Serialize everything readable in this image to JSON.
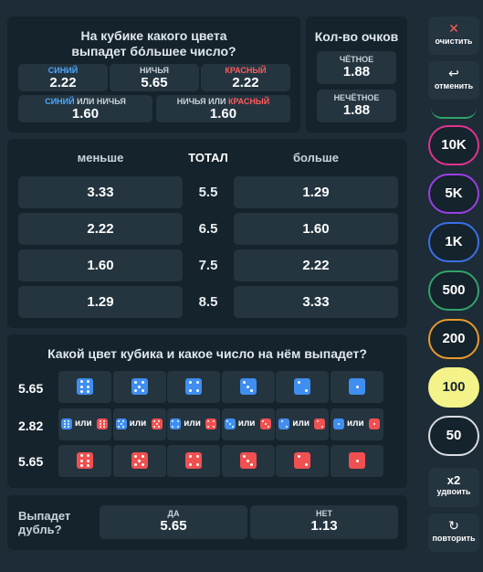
{
  "color_question": {
    "title": "На кубике какого цвета выпадет бо́льшее число?",
    "blue": {
      "label": "синий",
      "odds": "2.22"
    },
    "draw": {
      "label": "ничья",
      "odds": "5.65"
    },
    "red": {
      "label": "красный",
      "odds": "2.22"
    },
    "blue_or_draw": {
      "label_a": "синий",
      "label_or": "или",
      "label_b": "ничья",
      "odds": "1.60"
    },
    "draw_or_red": {
      "label_a": "ничья",
      "label_or": "или",
      "label_b": "красный",
      "odds": "1.60"
    }
  },
  "points": {
    "title": "Кол-во очков",
    "even": {
      "label": "чётное",
      "odds": "1.88"
    },
    "odd": {
      "label": "нечётное",
      "odds": "1.88"
    }
  },
  "total": {
    "header_less": "меньше",
    "header_total": "ТОТАЛ",
    "header_more": "больше",
    "rows": [
      {
        "less": "3.33",
        "total": "5.5",
        "more": "1.29"
      },
      {
        "less": "2.22",
        "total": "6.5",
        "more": "1.60"
      },
      {
        "less": "1.60",
        "total": "7.5",
        "more": "2.22"
      },
      {
        "less": "1.29",
        "total": "8.5",
        "more": "3.33"
      }
    ]
  },
  "dice_question": {
    "title": "Какой цвет кубика и какое число на нём выпадет?",
    "blue_odds": "5.65",
    "mixed_odds": "2.82",
    "red_odds": "5.65",
    "or_word": "или",
    "faces": [
      6,
      5,
      4,
      3,
      2,
      1
    ],
    "colors": {
      "blue": "#3f8ef0",
      "red": "#f05050"
    }
  },
  "double": {
    "title_line1": "Выпадет",
    "title_line2": "дубль?",
    "yes": {
      "label": "да",
      "odds": "5.65"
    },
    "no": {
      "label": "нет",
      "odds": "1.13"
    }
  },
  "sidebar": {
    "clear_label": "очистить",
    "undo_label": "отменить",
    "double_label": "удвоить",
    "double_mult": "x2",
    "repeat_label": "повторить",
    "chips": [
      {
        "label": "10K",
        "color": "#e0338f"
      },
      {
        "label": "5K",
        "color": "#9b3ee6"
      },
      {
        "label": "1K",
        "color": "#3b6fe6"
      },
      {
        "label": "500",
        "color": "#2fa46a"
      },
      {
        "label": "200",
        "color": "#e89a2c"
      },
      {
        "label": "100",
        "color": "#f3f38a",
        "selected": true
      },
      {
        "label": "50",
        "color": "#d7dde2"
      }
    ]
  }
}
